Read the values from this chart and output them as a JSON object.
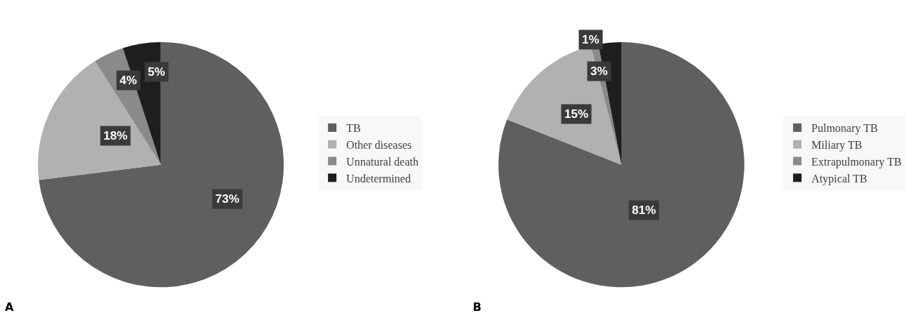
{
  "chart_data": [
    {
      "type": "pie",
      "title": "A",
      "categories": [
        "TB",
        "Other diseases",
        "Unnatural death",
        "Undetermined"
      ],
      "values": [
        73,
        18,
        4,
        5
      ],
      "value_labels": [
        "73%",
        "18%",
        "4%",
        "5%"
      ],
      "colors": [
        "#5f5f5f",
        "#b1b1b1",
        "#8a8a8a",
        "#1e1e1e"
      ],
      "legend": "right"
    },
    {
      "type": "pie",
      "title": "B",
      "categories": [
        "Pulmonary TB",
        "Miliary TB",
        "Extrapulmonary TB",
        "Atypical TB"
      ],
      "values": [
        81,
        15,
        1,
        3
      ],
      "value_labels": [
        "81%",
        "15%",
        "1%",
        "3%"
      ],
      "colors": [
        "#5f5f5f",
        "#b1b1b1",
        "#8a8a8a",
        "#1e1e1e"
      ],
      "legend": "right"
    }
  ]
}
